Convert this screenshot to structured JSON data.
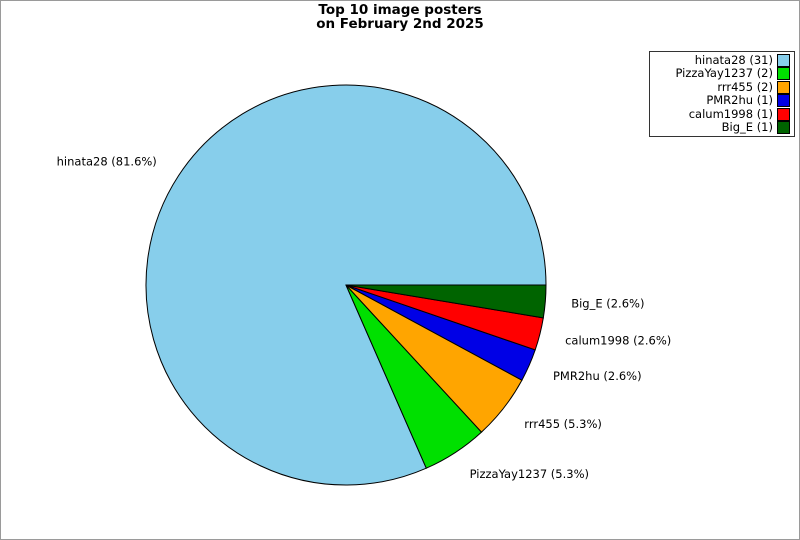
{
  "title": {
    "line1": "Top 10 image posters",
    "line2": "on February 2nd 2025"
  },
  "chart_data": {
    "type": "pie",
    "title": "Top 10 image posters on February 2nd 2025",
    "categories": [
      "hinata28",
      "PizzaYay1237",
      "rrr455",
      "PMR2hu",
      "calum1998",
      "Big_E"
    ],
    "values": [
      31,
      2,
      2,
      1,
      1,
      1
    ],
    "percentages": [
      81.6,
      5.3,
      5.3,
      2.6,
      2.6,
      2.6
    ],
    "slice_labels": [
      "hinata28 (81.6%)",
      "PizzaYay1237 (5.3%)",
      "rrr455 (5.3%)",
      "PMR2hu (2.6%)",
      "calum1998 (2.6%)",
      "Big_E (2.6%)"
    ],
    "colors": [
      "#87CEEB",
      "#00E000",
      "#FFA500",
      "#0000E6",
      "#FF0000",
      "#006400"
    ],
    "slice_edge_color": "#000000",
    "start_angle_deg": 0,
    "direction": "counterclockwise",
    "legend": {
      "position": "top-right",
      "entries": [
        "hinata28 (31)",
        "PizzaYay1237 (2)",
        "rrr455 (2)",
        "PMR2hu (1)",
        "calum1998 (1)",
        "Big_E (1)"
      ]
    }
  }
}
